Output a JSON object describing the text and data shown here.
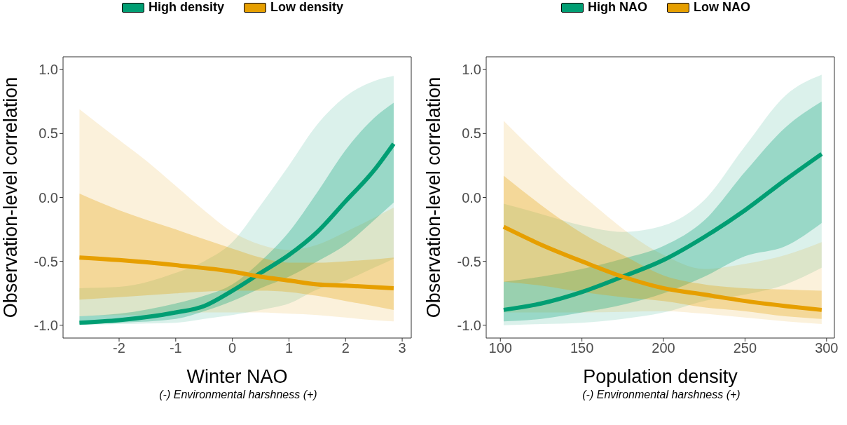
{
  "chart_data": [
    {
      "type": "line",
      "xlabel": "Winter NAO",
      "ylabel": "Observation-level correlation",
      "annotations": [
        "(-) Environmental harshness (+)"
      ],
      "legend": "top",
      "grid": false,
      "xlim": [
        -2.99,
        3.16
      ],
      "ylim": [
        -1.1,
        1.1
      ],
      "xticks": [
        -2,
        -1,
        0,
        1,
        2,
        3
      ],
      "yticks": [
        {
          "value": -1,
          "label": "-1.0"
        },
        {
          "value": -0.5,
          "label": "-0.5"
        },
        {
          "value": 0,
          "label": "0.0"
        },
        {
          "value": 0.5,
          "label": "0.5"
        },
        {
          "value": 1,
          "label": "1.0"
        }
      ],
      "series": [
        {
          "type": "area",
          "color": "#009e73",
          "x": [
            -2.7,
            -2,
            -1,
            -0.5,
            0,
            0.5,
            1,
            1.5,
            2,
            2.5,
            2.85
          ],
          "values": [
            null,
            null,
            null,
            null,
            null,
            null,
            null,
            null,
            null,
            null,
            null
          ],
          "lower": [
            -1.0,
            -0.99,
            -0.98,
            -0.95,
            -0.92,
            -0.88,
            -0.83,
            -0.72,
            -0.65,
            -0.55,
            -0.48
          ],
          "upper": [
            -0.71,
            -0.7,
            -0.59,
            -0.5,
            -0.35,
            -0.06,
            0.25,
            0.57,
            0.79,
            0.91,
            0.95
          ]
        },
        {
          "type": "area",
          "color": "#e69f00",
          "x": [
            -2.7,
            -2,
            -1.5,
            -1,
            -0.5,
            0,
            0.5,
            1,
            1.5,
            2,
            2.5,
            2.85
          ],
          "values": [
            null,
            null,
            null,
            null,
            null,
            null,
            null,
            null,
            null,
            null,
            null,
            null
          ],
          "lower": [
            -0.93,
            -0.92,
            -0.92,
            -0.91,
            -0.9,
            -0.9,
            -0.9,
            -0.91,
            -0.92,
            -0.94,
            -0.96,
            -0.97
          ],
          "upper": [
            0.69,
            0.45,
            0.28,
            0.09,
            -0.1,
            -0.27,
            -0.37,
            -0.41,
            -0.37,
            -0.27,
            -0.16,
            -0.08
          ]
        },
        {
          "name": "High density",
          "color": "#009e73",
          "x": [
            -2.7,
            -2,
            -1,
            -0.5,
            0,
            0.5,
            1,
            1.5,
            2,
            2.5,
            2.85
          ],
          "values": [
            -0.98,
            -0.96,
            -0.9,
            -0.85,
            -0.73,
            -0.59,
            -0.45,
            -0.27,
            -0.03,
            0.21,
            0.42
          ],
          "lower": [
            -0.99,
            -0.98,
            -0.95,
            -0.89,
            -0.81,
            -0.71,
            -0.62,
            -0.5,
            -0.37,
            -0.18,
            -0.04
          ],
          "upper": [
            -0.93,
            -0.91,
            -0.83,
            -0.77,
            -0.68,
            -0.5,
            -0.27,
            0.04,
            0.37,
            0.62,
            0.74
          ]
        },
        {
          "name": "Low density",
          "color": "#e69f00",
          "x": [
            -2.7,
            -2,
            -1,
            0,
            0.5,
            1,
            1.5,
            2,
            2.85
          ],
          "values": [
            -0.47,
            -0.49,
            -0.53,
            -0.58,
            -0.62,
            -0.65,
            -0.68,
            -0.69,
            -0.71
          ],
          "lower": [
            -0.8,
            -0.78,
            -0.75,
            -0.73,
            -0.73,
            -0.74,
            -0.77,
            -0.81,
            -0.88
          ],
          "upper": [
            0.03,
            -0.1,
            -0.25,
            -0.4,
            -0.47,
            -0.51,
            -0.51,
            -0.5,
            -0.47
          ]
        }
      ]
    },
    {
      "type": "line",
      "xlabel": "Population density",
      "ylabel": "Observation-level correlation",
      "annotations": [
        "(-) Environmental harshness (+)"
      ],
      "legend": "top",
      "grid": false,
      "xlim": [
        91.3,
        304.8
      ],
      "ylim": [
        -1.1,
        1.1
      ],
      "xticks": [
        100,
        150,
        200,
        250,
        300
      ],
      "yticks": [
        {
          "value": -1,
          "label": "-1.0"
        },
        {
          "value": -0.5,
          "label": "-0.5"
        },
        {
          "value": 0,
          "label": "0.0"
        },
        {
          "value": 0.5,
          "label": "0.5"
        },
        {
          "value": 1,
          "label": "1.0"
        }
      ],
      "series": [
        {
          "type": "area",
          "color": "#009e73",
          "x": [
            102,
            125,
            150,
            175,
            200,
            225,
            250,
            275,
            297
          ],
          "values": [
            null,
            null,
            null,
            null,
            null,
            null,
            null,
            null,
            null
          ],
          "lower": [
            -1.0,
            -0.99,
            -0.98,
            -0.95,
            -0.9,
            -0.81,
            -0.76,
            -0.68,
            -0.55
          ],
          "upper": [
            -0.05,
            -0.13,
            -0.22,
            -0.27,
            -0.22,
            -0.02,
            0.4,
            0.8,
            0.96
          ]
        },
        {
          "type": "area",
          "color": "#e69f00",
          "x": [
            102,
            150,
            200,
            225,
            250,
            275,
            297
          ],
          "values": [
            null,
            null,
            null,
            null,
            null,
            null,
            null
          ],
          "lower": [
            -0.9,
            -0.9,
            -0.89,
            -0.91,
            -0.94,
            -0.97,
            -0.99
          ],
          "upper": [
            0.6,
            0.02,
            -0.45,
            -0.56,
            -0.52,
            -0.45,
            -0.35
          ]
        },
        {
          "name": "High NAO",
          "color": "#009e73",
          "x": [
            102,
            125,
            150,
            175,
            200,
            225,
            250,
            275,
            297
          ],
          "values": [
            -0.88,
            -0.83,
            -0.74,
            -0.62,
            -0.49,
            -0.31,
            -0.1,
            0.14,
            0.34
          ],
          "lower": [
            -0.97,
            -0.95,
            -0.9,
            -0.84,
            -0.75,
            -0.62,
            -0.46,
            -0.38,
            -0.2
          ],
          "upper": [
            -0.66,
            -0.62,
            -0.56,
            -0.48,
            -0.38,
            -0.18,
            0.2,
            0.55,
            0.75
          ]
        },
        {
          "name": "Low NAO",
          "color": "#e69f00",
          "x": [
            102,
            125,
            150,
            175,
            200,
            225,
            250,
            275,
            297
          ],
          "values": [
            -0.23,
            -0.37,
            -0.5,
            -0.62,
            -0.71,
            -0.76,
            -0.81,
            -0.85,
            -0.88
          ],
          "lower": [
            -0.66,
            -0.69,
            -0.74,
            -0.78,
            -0.81,
            -0.86,
            -0.89,
            -0.93,
            -0.95
          ],
          "upper": [
            0.17,
            -0.06,
            -0.28,
            -0.45,
            -0.61,
            -0.68,
            -0.71,
            -0.72,
            -0.73
          ]
        }
      ]
    }
  ]
}
